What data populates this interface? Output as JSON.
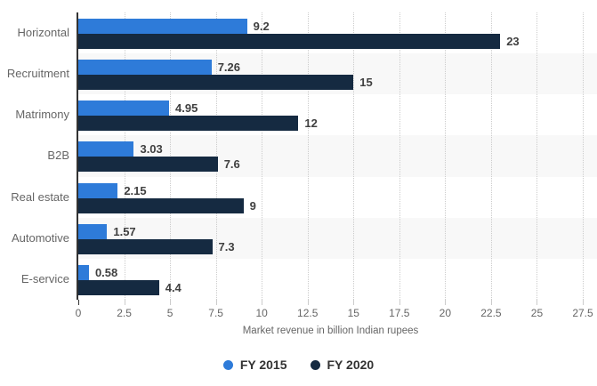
{
  "chart_data": {
    "type": "bar",
    "orientation": "horizontal",
    "categories": [
      "Horizontal",
      "Recruitment",
      "Matrimony",
      "B2B",
      "Real estate",
      "Automotive",
      "E-service"
    ],
    "series": [
      {
        "name": "FY 2015",
        "color": "#2e7bd9",
        "values": [
          9.2,
          7.26,
          4.95,
          3.03,
          2.15,
          1.57,
          0.58
        ]
      },
      {
        "name": "FY 2020",
        "color": "#152a41",
        "values": [
          23,
          15,
          12,
          7.6,
          9,
          7.3,
          4.4
        ]
      }
    ],
    "xlabel": "Market revenue in billion Indian rupees",
    "xlim": [
      0,
      27.5
    ],
    "xticks": [
      0,
      2.5,
      5,
      7.5,
      10,
      12.5,
      15,
      17.5,
      20,
      22.5,
      25,
      27.5
    ],
    "grid": "vertical-dotted",
    "legend_position": "bottom-center"
  },
  "colors": {
    "background": "#ffffff",
    "row_band": "#f8f8f8",
    "gridline": "#cccccc",
    "axis_line": "#333333",
    "tick_mark": "#cccccc",
    "category_label": "#666666",
    "value_label": "#404040",
    "tick_label": "#666666",
    "axis_title": "#666666",
    "legend_text": "#333333"
  }
}
